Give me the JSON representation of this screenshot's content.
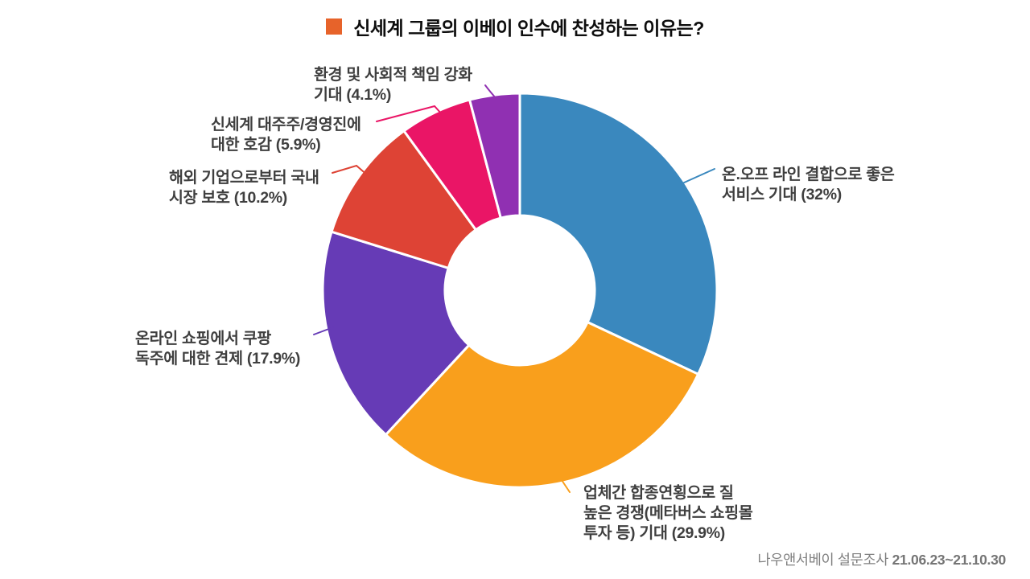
{
  "title": {
    "text": "신세계 그룹의 이베이 인수에 찬성하는 이유는?",
    "bullet_color": "#E7632A"
  },
  "chart_data": {
    "type": "pie",
    "subtype": "donut",
    "unit": "%",
    "start_angle": "top",
    "direction": "clockwise",
    "segments": [
      {
        "label": "온.오프 라인 결합으로 좋은\n서비스 기대 (32%)",
        "value": 32,
        "color": "#3A88BE"
      },
      {
        "label": "업체간 합종연횡으로 질\n높은 경쟁(메타버스 쇼핑몰\n투자 등) 기대 (29.9%)",
        "value": 29.9,
        "color": "#F99F1C"
      },
      {
        "label": "온라인 쇼핑에서 쿠팡\n독주에 대한 견제 (17.9%)",
        "value": 17.9,
        "color": "#663BB6"
      },
      {
        "label": "해외 기업으로부터 국내\n시장 보호 (10.2%)",
        "value": 10.2,
        "color": "#DE4335"
      },
      {
        "label": "신세계 대주주/경영진에\n대한 호감 (5.9%)",
        "value": 5.9,
        "color": "#EA1566"
      },
      {
        "label": "환경 및 사회적 책임 강화\n기대 (4.1%)",
        "value": 4.1,
        "color": "#9030B2"
      }
    ]
  },
  "footer": {
    "source": "나우앤서베이 설문조사",
    "period": "21.06.23~21.10.30"
  }
}
